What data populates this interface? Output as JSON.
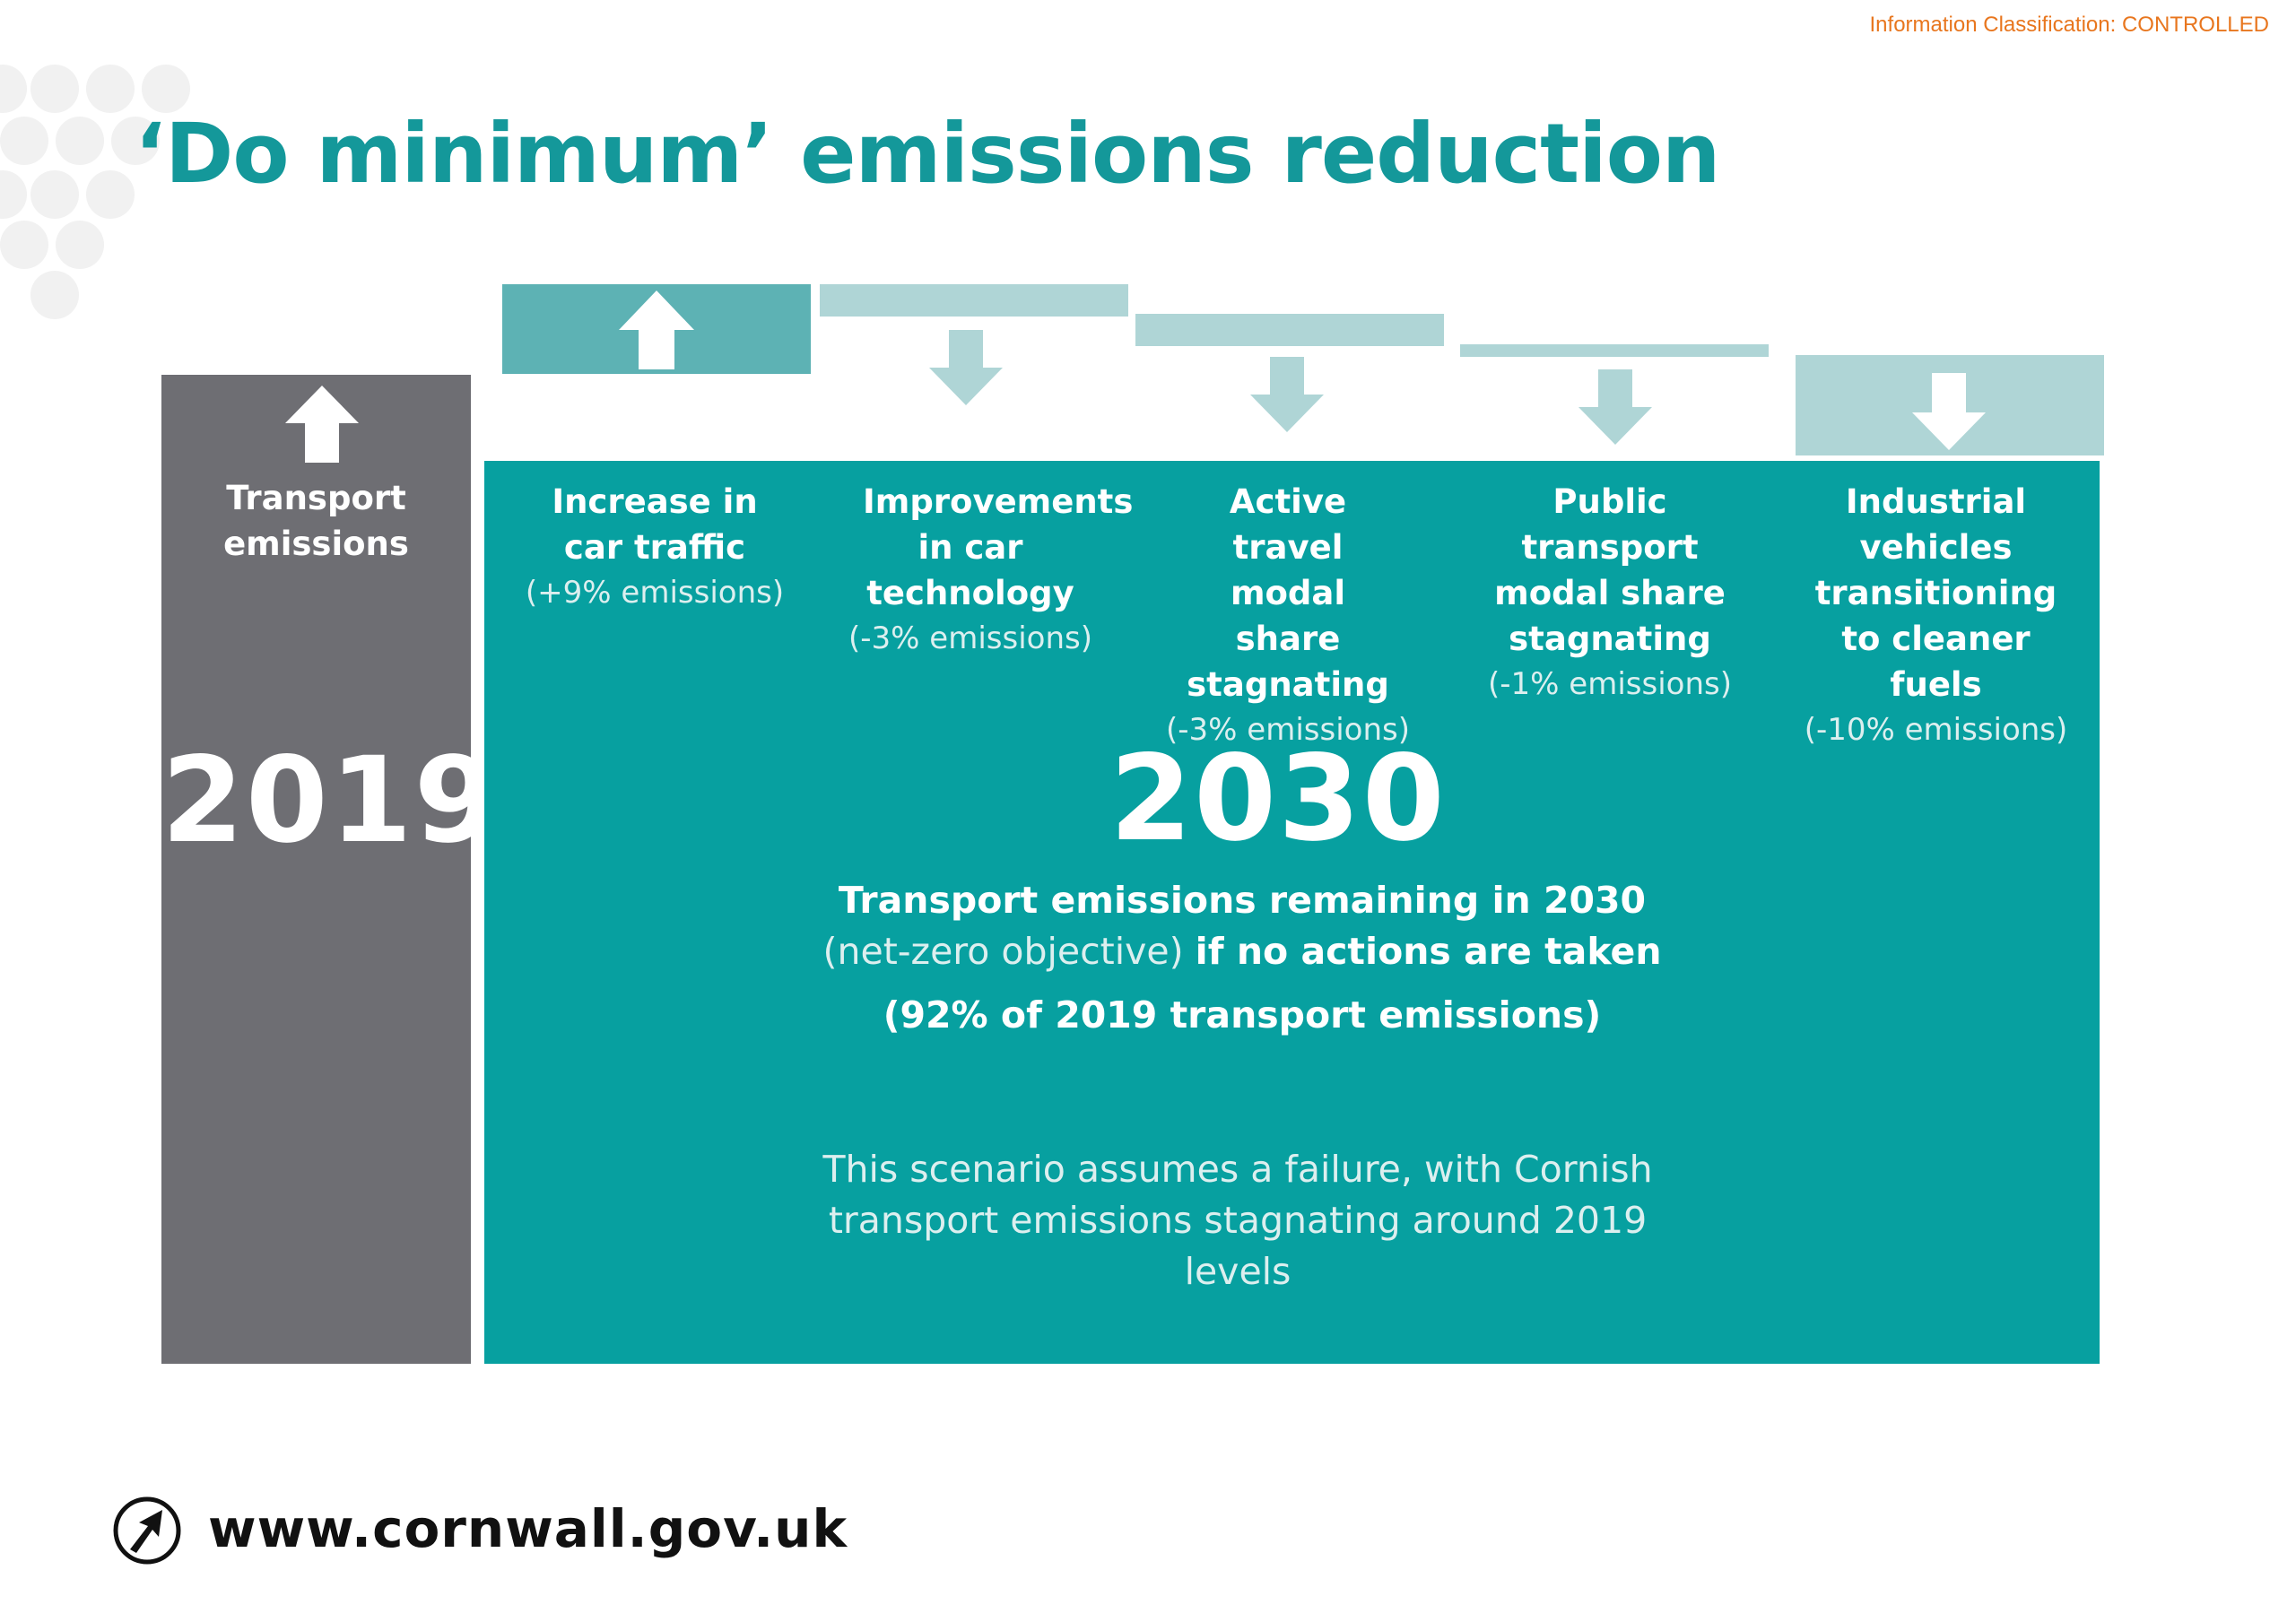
{
  "header": {
    "classification": "Information Classification: CONTROLLED",
    "title": "‘Do minimum’ emissions reduction"
  },
  "baseline": {
    "label": "Transport emissions",
    "year": "2019",
    "direction": "up"
  },
  "factors": [
    {
      "label": "Increase in car traffic",
      "impact": "(+9% emissions)",
      "change_percent": 9,
      "direction": "up"
    },
    {
      "label": "Improvements in car technology",
      "impact": "(-3% emissions)",
      "change_percent": -3,
      "direction": "down"
    },
    {
      "label": "Active travel modal share stagnating",
      "impact": "(-3% emissions)",
      "change_percent": -3,
      "direction": "down"
    },
    {
      "label": "Public transport modal share stagnating",
      "impact": "(-1% emissions)",
      "change_percent": -1,
      "direction": "down"
    },
    {
      "label": "Industrial vehicles transitioning to cleaner fuels",
      "impact": "(-10% emissions)",
      "change_percent": -10,
      "direction": "down"
    }
  ],
  "result": {
    "year": "2030",
    "line1": "Transport emissions remaining in 2030",
    "line2_light": "(net-zero objective)",
    "line2_bold": "if no actions are taken",
    "line3": "(92% of 2019 transport emissions)",
    "remaining_percent": 92,
    "note": "This scenario assumes a failure, with Cornish transport emissions stagnating around 2019 levels"
  },
  "footer": {
    "url": "www.cornwall.gov.uk",
    "logo_icon": "cornwall-council-arrow-logo-icon"
  },
  "colors": {
    "teal_dark": "#07a0a0",
    "teal_up_bar": "#5db2b4",
    "teal_down_bar": "#afd5d6",
    "grey_column": "#6e6e73",
    "title": "#14989a",
    "classification": "#e8761e"
  }
}
